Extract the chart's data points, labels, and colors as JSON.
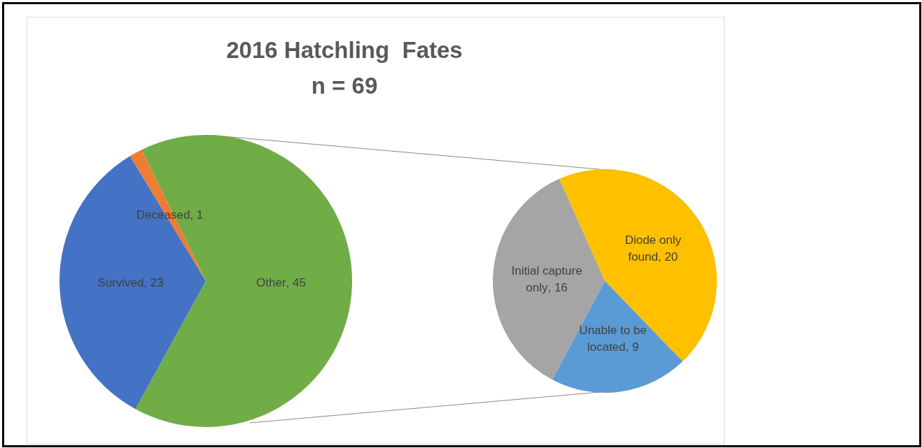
{
  "chart_data": [
    {
      "type": "pie",
      "title": "2016 Hatchling  Fates",
      "subtitle": "n = 69",
      "categories": [
        "Other",
        "Survived",
        "Deceased"
      ],
      "values": [
        45,
        23,
        1
      ],
      "colors": [
        "#70ad47",
        "#4472c4",
        "#ed7d31"
      ],
      "value_labels": [
        ", 45",
        ", 23",
        ", 1"
      ],
      "legend": false
    },
    {
      "type": "pie",
      "categories": [
        "Diode only found",
        "Unable to be located",
        "Initial capture only"
      ],
      "values": [
        20,
        9,
        16
      ],
      "colors": [
        "#ffc000",
        "#5b9bd5",
        "#a5a5a5"
      ],
      "value_labels": [
        ", 20",
        ", 9",
        ", 16"
      ],
      "legend": false
    }
  ]
}
